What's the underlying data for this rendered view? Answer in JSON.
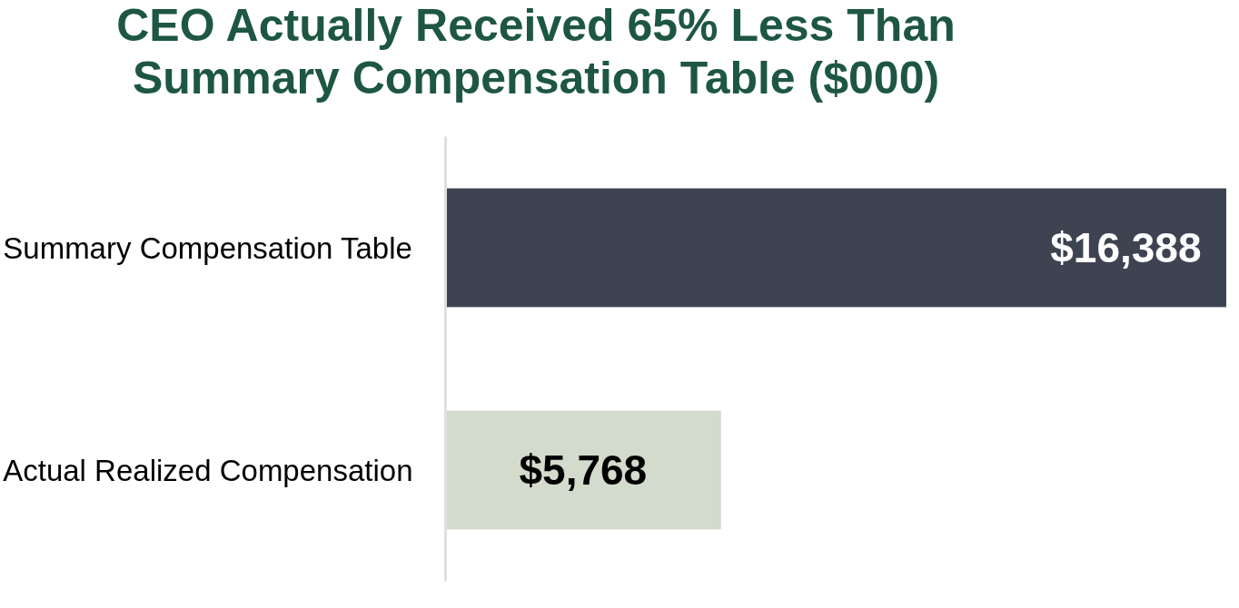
{
  "chart_data": {
    "type": "bar",
    "orientation": "horizontal",
    "title": "CEO Actually Received 65% Less Than Summary Compensation Table ($000)",
    "categories": [
      "Summary Compensation Table",
      "Actual Realized Compensation"
    ],
    "values": [
      16388,
      5768
    ],
    "colors": [
      "#3d4350",
      "#d3dbcc"
    ],
    "value_labels": [
      "$16,388",
      "$5,768"
    ],
    "grid": false
  }
}
